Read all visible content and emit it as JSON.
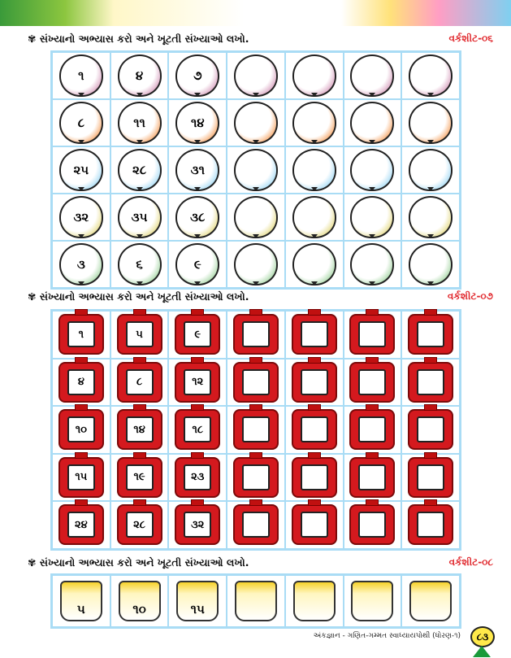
{
  "instruction": "સંખ્યાનો અભ્યાસ કરો અને ખૂટતી સંખ્યાઓ લખો.",
  "worksheets": [
    {
      "label": "વર્કશીટ-૦૬",
      "kind": "balloon",
      "colors": [
        "#d9a3c0",
        "#f6a86a",
        "#a8dcf5",
        "#e6dc8a",
        "#a9d8a8"
      ],
      "rows": [
        [
          "૧",
          "૪",
          "૭",
          "",
          "",
          "",
          ""
        ],
        [
          "૮",
          "૧૧",
          "૧૪",
          "",
          "",
          "",
          ""
        ],
        [
          "૨૫",
          "૨૮",
          "૩૧",
          "",
          "",
          "",
          ""
        ],
        [
          "૩૨",
          "૩૫",
          "૩૮",
          "",
          "",
          "",
          ""
        ],
        [
          "૩",
          "૬",
          "૯",
          "",
          "",
          "",
          ""
        ]
      ]
    },
    {
      "label": "વર્કશીટ-૦૭",
      "kind": "cylinder",
      "rows": [
        [
          "૧",
          "૫",
          "૯",
          "",
          "",
          "",
          ""
        ],
        [
          "૪",
          "૮",
          "૧૨",
          "",
          "",
          "",
          ""
        ],
        [
          "૧૦",
          "૧૪",
          "૧૮",
          "",
          "",
          "",
          ""
        ],
        [
          "૧૫",
          "૧૯",
          "૨૩",
          "",
          "",
          "",
          ""
        ],
        [
          "૨૪",
          "૨૮",
          "૩૨",
          "",
          "",
          "",
          ""
        ]
      ]
    },
    {
      "label": "વર્કશીટ-૦૮",
      "kind": "bucket",
      "rows": [
        [
          "૫",
          "૧૦",
          "૧૫",
          "",
          "",
          "",
          ""
        ]
      ]
    }
  ],
  "footer": {
    "text": "અંકજ્ઞાન - ગણિત-ગમ્મત સ્વાધ્યાયપોથી (ધોરણ-૧)",
    "page": "૮૩"
  }
}
